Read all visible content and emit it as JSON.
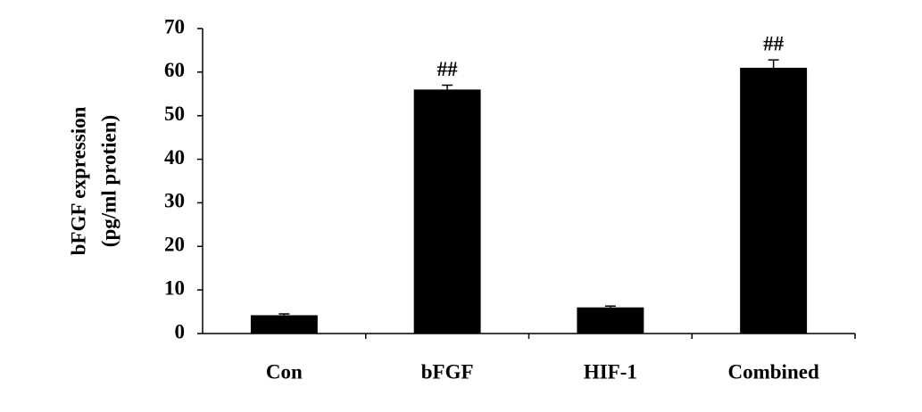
{
  "chart_data": {
    "type": "bar",
    "ylabel": [
      "bFGF expression",
      "(pg/ml protien)"
    ],
    "categories": [
      "Con",
      "bFGF",
      "HIF-1",
      "Combined"
    ],
    "values": [
      4.2,
      56,
      6,
      61
    ],
    "errors": [
      0.3,
      1,
      0.3,
      1.8
    ],
    "annotations": [
      null,
      "##",
      null,
      "##"
    ],
    "color": "#000000",
    "ylim": [
      0,
      70
    ],
    "yticks": [
      0,
      10,
      20,
      30,
      40,
      50,
      60,
      70
    ],
    "grid": false
  }
}
